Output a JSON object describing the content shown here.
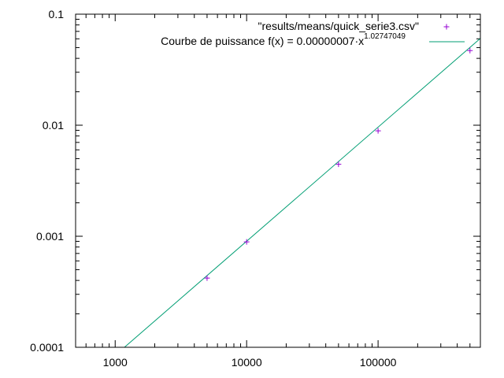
{
  "chart_data": {
    "type": "scatter",
    "x_scale": "log",
    "y_scale": "log",
    "xlim": [
      500,
      600000
    ],
    "ylim": [
      0.0001,
      0.1
    ],
    "grid": false,
    "legend_position": "top-right",
    "x_ticks": [
      {
        "value": 1000,
        "label": "1000"
      },
      {
        "value": 10000,
        "label": "10000"
      },
      {
        "value": 100000,
        "label": "100000"
      }
    ],
    "y_ticks": [
      {
        "value": 0.0001,
        "label": "0.0001"
      },
      {
        "value": 0.001,
        "label": "0.001"
      },
      {
        "value": 0.01,
        "label": "0.01"
      },
      {
        "value": 0.1,
        "label": "0.1"
      }
    ],
    "series": [
      {
        "name": "\"results/means/quick_serie3.csv\"",
        "style": "points",
        "color": "#9400d3",
        "x": [
          5000,
          10000,
          50000,
          100000,
          500000
        ],
        "y": [
          0.00042,
          0.00089,
          0.00445,
          0.0089,
          0.047
        ]
      }
    ],
    "fit": {
      "name_prefix": "Courbe de puissance f(x) = 0.00000007·x",
      "name_exponent": "1.02747049",
      "coefficient": 7e-08,
      "exponent": 1.02747049,
      "style": "line",
      "color": "#009e73"
    }
  }
}
